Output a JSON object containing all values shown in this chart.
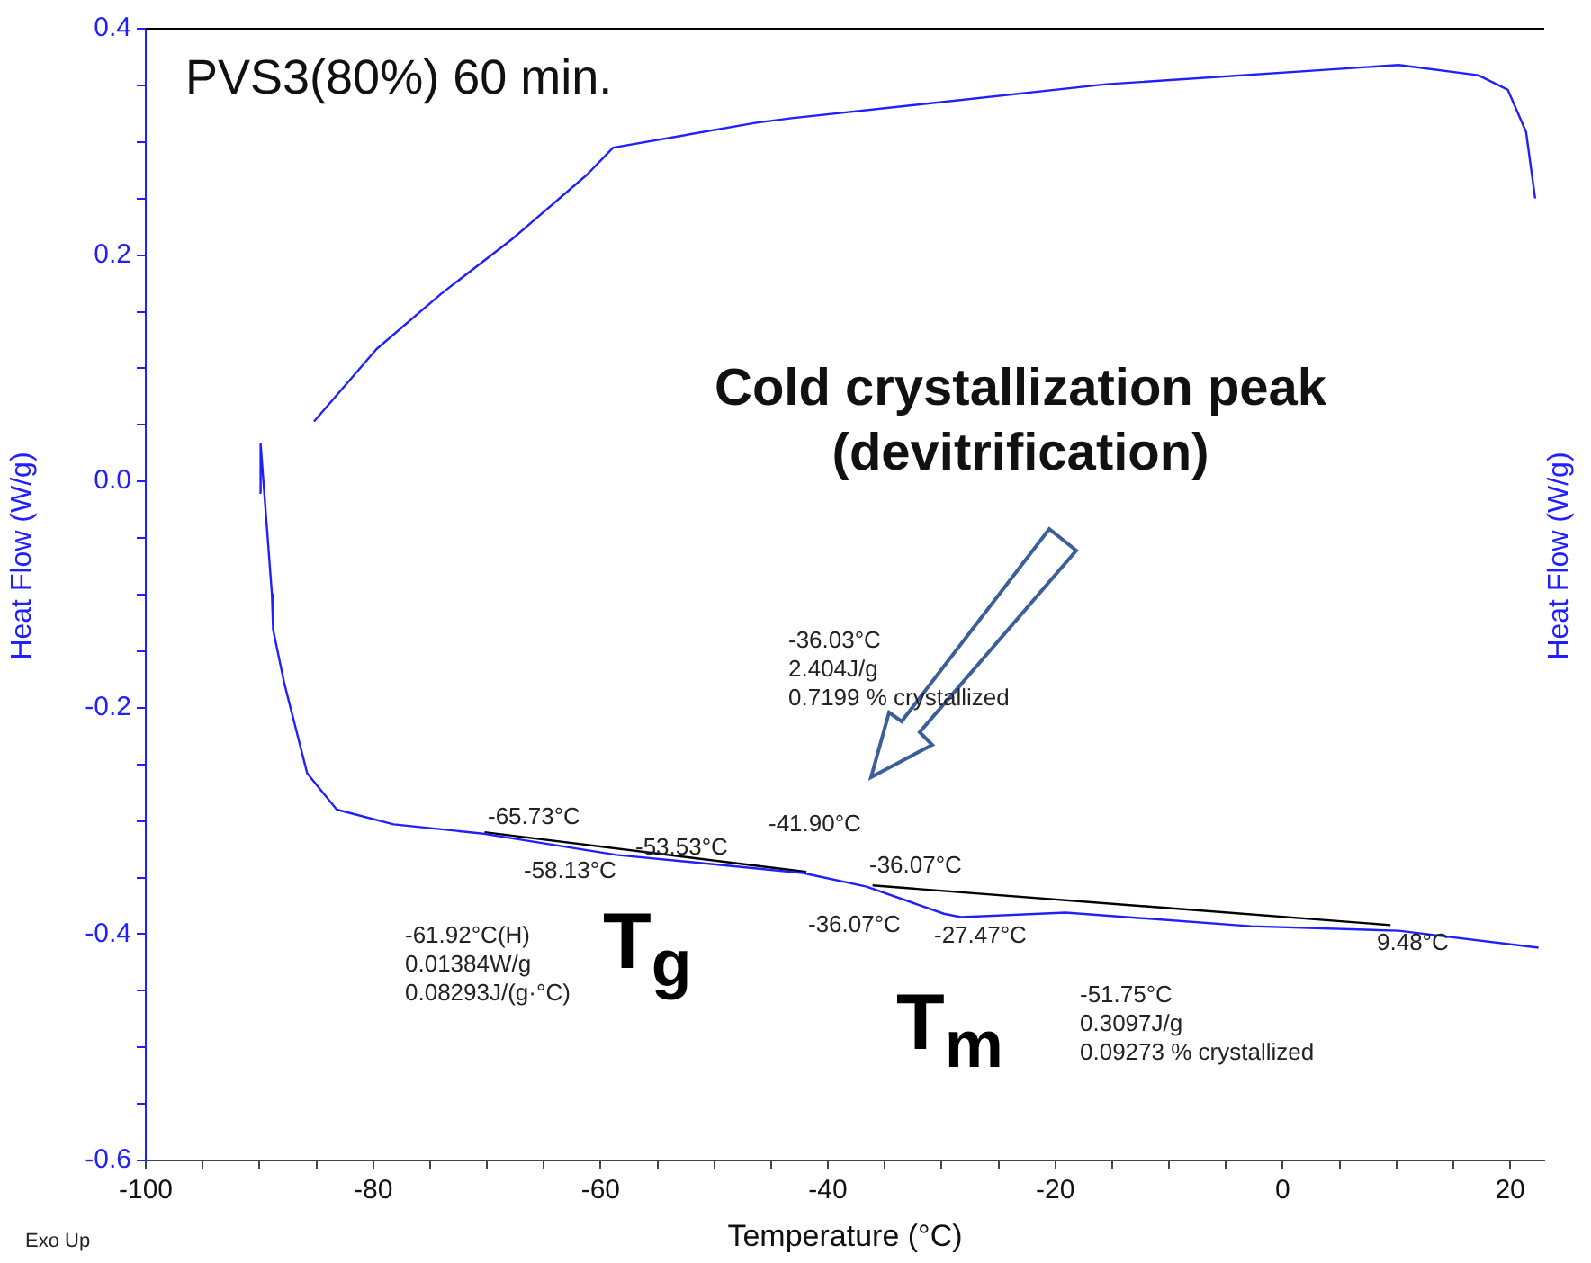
{
  "chart_data": {
    "type": "line",
    "title": "PVS3(80%) 60 min.",
    "xlabel": "Temperature (°C)",
    "ylabel": "Heat Flow (W/g)",
    "y2label": "Heat Flow (W/g)",
    "xlim": [
      -100,
      23
    ],
    "xticks": [
      -100,
      {
        "value": -95,
        "label": null
      },
      {
        "value": -90,
        "label": null
      },
      {
        "value": -85,
        "label": null
      },
      -80,
      {
        "value": -75,
        "label": null
      },
      {
        "value": -70,
        "label": null
      },
      {
        "value": -65,
        "label": null
      },
      -60,
      {
        "value": -55,
        "label": null
      },
      {
        "value": -50,
        "label": null
      },
      {
        "value": -45,
        "label": null
      },
      -40,
      {
        "value": -35,
        "label": null
      },
      {
        "value": -30,
        "label": null
      },
      {
        "value": -25,
        "label": null
      },
      -20,
      {
        "value": -15,
        "label": null
      },
      {
        "value": -10,
        "label": null
      },
      {
        "value": -5,
        "label": null
      },
      0,
      {
        "value": 5,
        "label": null
      },
      {
        "value": 10,
        "label": null
      },
      {
        "value": 15,
        "label": null
      },
      20
    ],
    "ylim": [
      -0.6,
      0.4
    ],
    "yticks": [
      {
        "value": -0.6,
        "label": "-0.6"
      },
      {
        "value": -0.55,
        "label": null
      },
      {
        "value": -0.5,
        "label": null
      },
      {
        "value": -0.45,
        "label": null
      },
      {
        "value": -0.4,
        "label": "-0.4"
      },
      {
        "value": -0.35,
        "label": null
      },
      {
        "value": -0.3,
        "label": null
      },
      {
        "value": -0.25,
        "label": null
      },
      {
        "value": -0.2,
        "label": "-0.2"
      },
      {
        "value": -0.15,
        "label": null
      },
      {
        "value": -0.1,
        "label": null
      },
      {
        "value": -0.05,
        "label": null
      },
      {
        "value": 0,
        "label": "0.0"
      },
      {
        "value": 0.05,
        "label": null
      },
      {
        "value": 0.1,
        "label": null
      },
      {
        "value": 0.15,
        "label": null
      },
      {
        "value": 0.2,
        "label": "0.2"
      },
      {
        "value": 0.25,
        "label": null
      },
      {
        "value": 0.3,
        "label": null
      },
      {
        "value": 0.35,
        "label": null
      },
      {
        "value": 0.4,
        "label": "0.4"
      }
    ],
    "series": [
      {
        "color": "#2020ff",
        "x": [
          -85.2,
          -79.7,
          -74.0,
          -67.8,
          -61.2,
          -58.9,
          -46.3,
          -43.2,
          -15.5,
          10.2,
          17.2,
          19.8,
          21.4,
          22.2
        ],
        "values": [
          0.053,
          0.117,
          0.166,
          0.214,
          0.271,
          0.295,
          0.317,
          0.321,
          0.351,
          0.368,
          0.359,
          0.346,
          0.309,
          0.25
        ]
      },
      {
        "color": "#2020ff",
        "x": [
          -90.0,
          -89.9,
          -88.9,
          -88.8,
          -87.8,
          -85.8,
          -83.2,
          -78.2,
          -70.5,
          -58.6,
          -42.2,
          -36.6,
          -29.8,
          -28.3,
          -19.1,
          -2.8,
          10.2,
          22.5
        ],
        "values": [
          -0.01,
          0.033,
          -0.1,
          -0.131,
          -0.179,
          -0.258,
          -0.29,
          -0.303,
          -0.311,
          -0.33,
          -0.346,
          -0.358,
          -0.382,
          -0.385,
          -0.381,
          -0.393,
          -0.397,
          -0.412
        ]
      },
      {
        "color": "#000000",
        "x": [
          -70.2,
          -41.9
        ],
        "values": [
          -0.31,
          -0.345
        ]
      },
      {
        "color": "#000000",
        "x": [
          -36.07,
          9.48
        ],
        "values": [
          -0.357,
          -0.392
        ]
      }
    ],
    "annotations": [
      "-65.73°C",
      "-58.13°C",
      "-53.53°C",
      "-41.90°C",
      "-36.07°C",
      "-36.07°C",
      "-27.47°C",
      "9.48°C",
      "Cold crystallization peak\n(devitrification)",
      "-36.03°C\n2.404J/g\n0.7199 % crystallized",
      "-61.92°C(H)\n0.01384W/g\n0.08293J/(g·°C)",
      "T$_{g}$",
      "T$_{m}$",
      "-51.75°C\n0.3097J/g\n0.09273 % crystallized",
      "Exo Up"
    ],
    "grid": false,
    "legend": false
  }
}
